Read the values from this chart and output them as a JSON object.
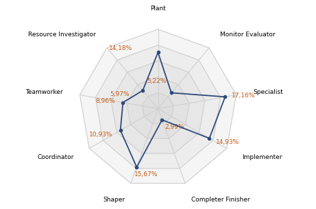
{
  "categories": [
    "Plant",
    "Monitor Evaluator",
    "Specialist",
    "Implementer",
    "Completer Finisher",
    "Shaper",
    "Coordinator",
    "Teamworker",
    "Resource Investigator"
  ],
  "values": [
    14.18,
    5.22,
    17.16,
    14.93,
    2.99,
    15.67,
    10.93,
    8.96,
    5.97
  ],
  "labels": [
    "14,18%",
    "5,22%",
    "17,16%",
    "14,93%",
    "2,99%",
    "15,67%",
    "10,93%",
    "8,96%",
    "5,97%"
  ],
  "max_value": 20,
  "num_rings": 5,
  "line_color": "#2e4a7a",
  "label_color": "#c55a11",
  "grid_color": "#d0d0d0",
  "bg_color": "#ffffff",
  "figsize": [
    4.61,
    3.05
  ],
  "dpi": 100,
  "label_fontsize": 6.5,
  "value_fontsize": 6.5,
  "cat_label_distance": 1.22,
  "num_value_offsets": [
    0.12,
    0.1,
    0.08,
    0.09,
    0.1,
    0.1,
    0.11,
    0.1,
    0.1
  ]
}
